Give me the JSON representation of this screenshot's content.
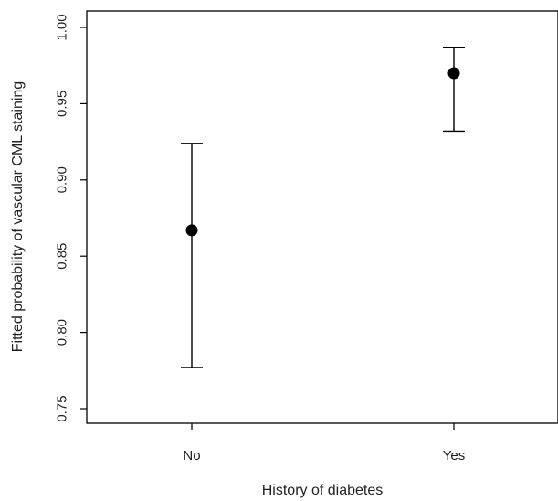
{
  "chart_data": {
    "type": "scatter",
    "title": "",
    "xlabel": "History of diabetes",
    "ylabel": "Fitted probability of vascular CML staining",
    "categories": [
      "No",
      "Yes"
    ],
    "series": [
      {
        "points": [
          {
            "x": "No",
            "y": 0.867,
            "lower": 0.777,
            "upper": 0.924
          },
          {
            "x": "Yes",
            "y": 0.97,
            "lower": 0.932,
            "upper": 0.987
          }
        ]
      }
    ],
    "ylim": [
      0.75,
      1.0
    ],
    "yticks": [
      "0.75",
      "0.80",
      "0.85",
      "0.90",
      "0.95",
      "1.00"
    ],
    "grid": false,
    "legend": "none",
    "colors": {
      "point": "#000000",
      "axis": "#000000"
    }
  }
}
